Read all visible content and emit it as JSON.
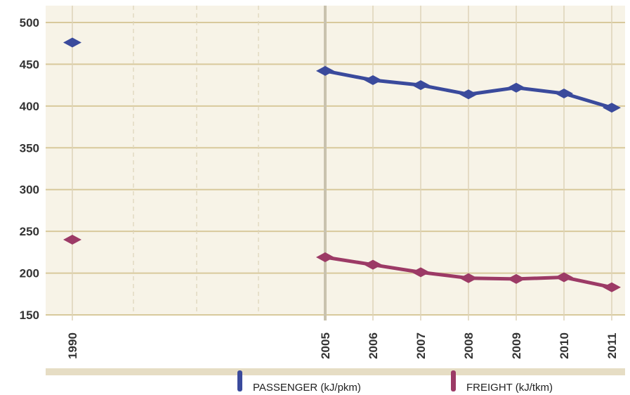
{
  "chart_data": {
    "type": "line",
    "x": [
      "1990",
      "2005",
      "2006",
      "2007",
      "2008",
      "2009",
      "2010",
      "2011"
    ],
    "ylim": [
      150,
      500
    ],
    "yticks": [
      150,
      200,
      250,
      300,
      350,
      400,
      450,
      500
    ],
    "grid": true,
    "legend_position": "bottom",
    "series": [
      {
        "name": "PASSENGER (kJ/pkm)",
        "color": "#3a4a9c",
        "values": [
          476,
          442,
          431,
          425,
          414,
          422,
          415,
          398
        ]
      },
      {
        "name": "FREIGHT (kJ/tkm)",
        "color": "#9c3a66",
        "values": [
          240,
          219,
          210,
          201,
          194,
          193,
          195,
          183
        ]
      }
    ]
  },
  "colors": {
    "background": "#f7f3e7",
    "grid": "#d8c99c",
    "highlight_line": "#c9c2ae"
  }
}
